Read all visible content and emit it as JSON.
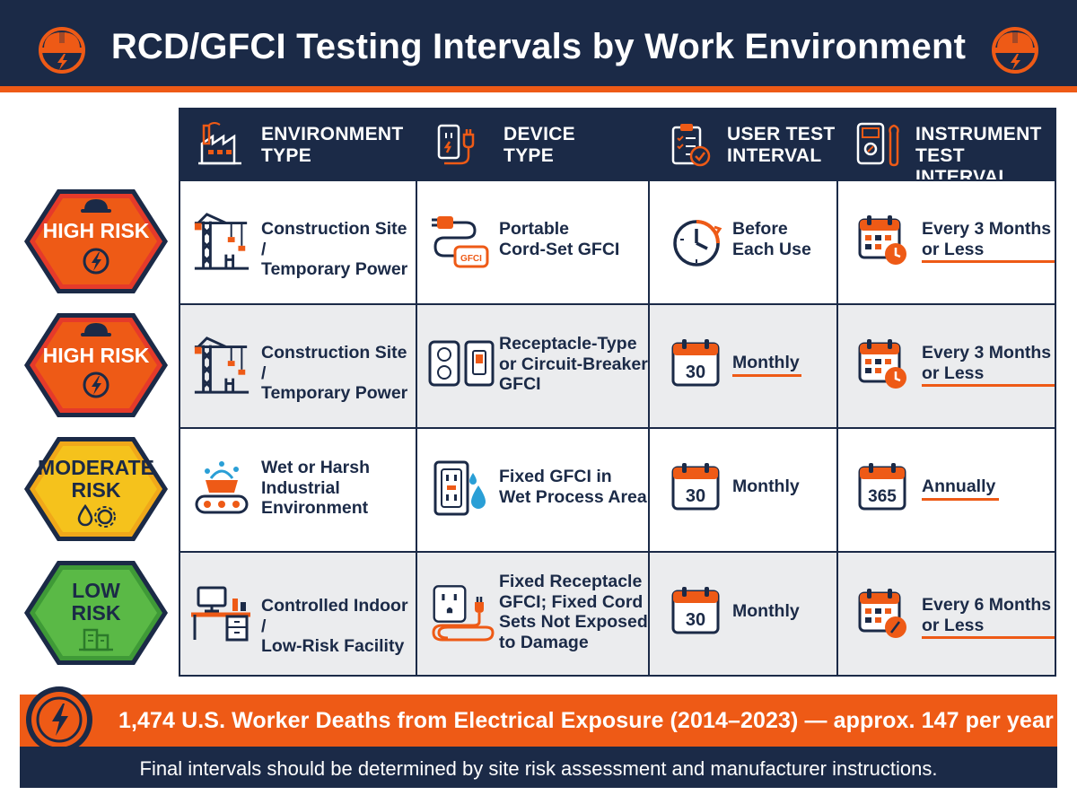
{
  "title": "RCD/GFCI Testing Intervals by Work Environment",
  "header_icon": "hard-hat-lightning-icon",
  "columns": [
    {
      "label": "ENVIRONMENT\nTYPE",
      "icon": "factory-icon"
    },
    {
      "label": "DEVICE\nTYPE",
      "icon": "outlet-plug-icon"
    },
    {
      "label": "USER TEST\nINTERVAL",
      "icon": "clipboard-checklist-icon"
    },
    {
      "label": "INSTRUMENT\nTEST INTERVAL",
      "icon": "multimeter-wrench-icon"
    }
  ],
  "rows": [
    {
      "risk": "HIGH RISK",
      "risk_color": "#ee5a16",
      "risk_icon": "hard-hat-lightning-icon",
      "environment": "Construction Site /\nTemporary Power",
      "environment_icon": "crane-icon",
      "device": "Portable\nCord-Set GFCI",
      "device_icon": "cord-set-gfci-icon",
      "user_interval": "Before\nEach Use",
      "user_icon": "clock-icon",
      "instrument_interval": "Every 3 Months\nor Less",
      "instrument_icon": "calendar-clock-icon"
    },
    {
      "risk": "HIGH RISK",
      "risk_color": "#ee5a16",
      "risk_icon": "hard-hat-lightning-icon",
      "environment": "Construction Site /\nTemporary Power",
      "environment_icon": "crane-icon",
      "device": "Receptacle-Type\nor Circuit-Breaker\nGFCI",
      "device_icon": "receptacle-breaker-icon",
      "user_interval": "Monthly",
      "user_calendar": "30",
      "user_icon": "calendar-30-icon",
      "instrument_interval": "Every 3 Months\nor Less",
      "instrument_icon": "calendar-clock-icon"
    },
    {
      "risk": "MODERATE\nRISK",
      "risk_color": "#f5c21c",
      "risk_icon": "water-drop-gear-icon",
      "environment": "Wet or Harsh\nIndustrial\nEnvironment",
      "environment_icon": "splashing-machine-icon",
      "device": "Fixed GFCI in\nWet Process Area",
      "device_icon": "gfci-outlet-water-icon",
      "user_interval": "Monthly",
      "user_calendar": "30",
      "user_icon": "calendar-30-icon",
      "instrument_interval": "Annually",
      "instrument_calendar": "365",
      "instrument_icon": "calendar-365-icon"
    },
    {
      "risk": "LOW\nRISK",
      "risk_color": "#5ab946",
      "risk_icon": "office-building-icon",
      "environment": "Controlled Indoor /\nLow-Risk Facility",
      "environment_icon": "office-desk-icon",
      "device": "Fixed Receptacle\nGFCI; Fixed Cord\nSets Not Exposed\nto Damage",
      "device_icon": "receptacle-cord-icon",
      "user_interval": "Monthly",
      "user_calendar": "30",
      "user_icon": "calendar-30-icon",
      "instrument_interval": "Every 6 Months\nor Less",
      "instrument_icon": "calendar-gauge-icon"
    }
  ],
  "banner": "1,474 U.S. Worker Deaths from Electrical Exposure (2014–2023) — approx. 147 per year",
  "banner_icon": "lightning-icon",
  "footer": "Final intervals should be determined by site risk assessment and manufacturer instructions.",
  "colors": {
    "navy": "#1b2a47",
    "accent": "#ee5a16",
    "row_alt": "#ebecee"
  }
}
